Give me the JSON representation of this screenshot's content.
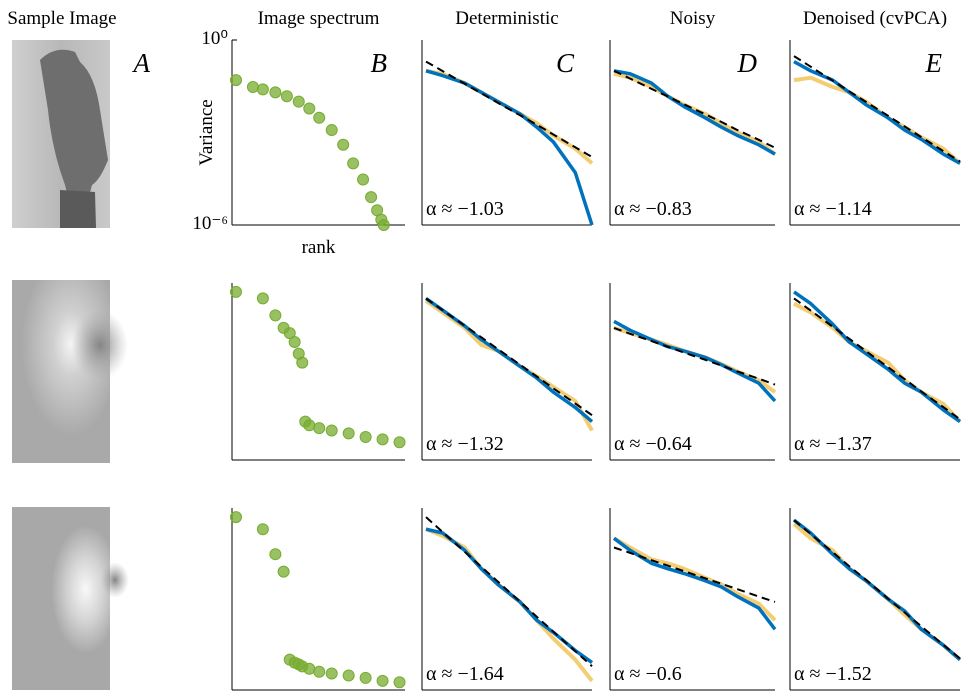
{
  "image_column": {
    "title": "Sample Image",
    "panel_label": "A"
  },
  "chart_data": [
    {
      "type": "scatter",
      "title": "Image spectrum",
      "panel_label": "B",
      "y_label": "Variance",
      "x_label": "rank",
      "log_x": true,
      "log_y": true,
      "color": "#77ac30",
      "xlim": [
        1,
        1000
      ],
      "ylim": [
        1e-06,
        1
      ],
      "yticks": [
        {
          "value": 1,
          "label": "10⁰"
        },
        {
          "value": 1e-06,
          "label": "10⁻⁶"
        }
      ],
      "x": [
        1,
        2,
        3,
        5,
        8,
        13,
        20,
        30,
        50,
        80,
        120,
        180,
        250,
        320,
        380,
        420
      ],
      "values": [
        0.05,
        0.03,
        0.025,
        0.02,
        0.015,
        0.01,
        0.006,
        0.003,
        0.0012,
        0.0004,
        0.0001,
        3e-05,
        8e-06,
        3e-06,
        1.5e-06,
        1e-06
      ]
    },
    {
      "type": "line",
      "title": "Deterministic",
      "panel_label": "C",
      "annotation": "α ≈ −1.03",
      "log_x": true,
      "log_y": true,
      "xlim": [
        1,
        1000
      ],
      "ylim": [
        1e-06,
        1
      ],
      "x": [
        1,
        2,
        5,
        10,
        20,
        50,
        100,
        200,
        500,
        1000
      ],
      "series": [
        {
          "color": "#f2c45a",
          "values": [
            0.1,
            0.08,
            0.04,
            0.02,
            0.01,
            0.004,
            0.002,
            0.0008,
            0.0003,
            0.0001
          ]
        },
        {
          "color": "#0072bd",
          "values": [
            0.1,
            0.07,
            0.04,
            0.02,
            0.01,
            0.004,
            0.0015,
            0.0005,
            5e-05,
            1e-06
          ]
        },
        {
          "color": "#000000",
          "dashed": true,
          "values": [
            0.2,
            0.098,
            0.038,
            0.0187,
            0.0091,
            0.0036,
            0.0018,
            0.00086,
            0.00033,
            0.00016
          ]
        }
      ]
    },
    {
      "type": "line",
      "title": "Noisy",
      "panel_label": "D",
      "annotation": "α ≈ −0.83",
      "log_x": true,
      "log_y": true,
      "xlim": [
        1,
        1000
      ],
      "ylim": [
        1e-06,
        1
      ],
      "x": [
        1,
        2,
        5,
        10,
        20,
        50,
        100,
        200,
        500,
        1000
      ],
      "series": [
        {
          "color": "#f2c45a",
          "values": [
            0.08,
            0.06,
            0.03,
            0.015,
            0.008,
            0.004,
            0.002,
            0.001,
            0.0005,
            0.0002
          ]
        },
        {
          "color": "#0072bd",
          "values": [
            0.1,
            0.08,
            0.04,
            0.015,
            0.007,
            0.003,
            0.0015,
            0.0008,
            0.0004,
            0.0002
          ]
        },
        {
          "color": "#000000",
          "dashed": true,
          "values": [
            0.1,
            0.056,
            0.026,
            0.0148,
            0.0083,
            0.0039,
            0.0022,
            0.0012,
            0.00058,
            0.00032
          ]
        }
      ]
    },
    {
      "type": "line",
      "title": "Denoised (cvPCA)",
      "panel_label": "E",
      "annotation": "α ≈ −1.14",
      "log_x": true,
      "log_y": true,
      "xlim": [
        1,
        1000
      ],
      "ylim": [
        1e-06,
        1
      ],
      "x": [
        1,
        2,
        5,
        10,
        20,
        50,
        100,
        200,
        500,
        1000
      ],
      "series": [
        {
          "color": "#f2c45a",
          "values": [
            0.05,
            0.06,
            0.03,
            0.02,
            0.01,
            0.003,
            0.0015,
            0.0007,
            0.0003,
            0.0001
          ]
        },
        {
          "color": "#0072bd",
          "values": [
            0.2,
            0.1,
            0.05,
            0.02,
            0.008,
            0.003,
            0.0012,
            0.0006,
            0.0002,
            0.0001
          ]
        },
        {
          "color": "#000000",
          "dashed": true,
          "values": [
            0.3,
            0.136,
            0.048,
            0.0217,
            0.0098,
            0.0035,
            0.00157,
            0.00071,
            0.00025,
            0.000115
          ]
        }
      ]
    },
    {
      "type": "scatter",
      "log_x": true,
      "log_y": true,
      "color": "#77ac30",
      "xlim": [
        1,
        1000
      ],
      "ylim": [
        1e-06,
        1
      ],
      "x": [
        1,
        3,
        5,
        7,
        9,
        11,
        13,
        15,
        17,
        20,
        30,
        50,
        100,
        200,
        400,
        800
      ],
      "values": [
        0.5,
        0.3,
        0.08,
        0.03,
        0.02,
        0.01,
        0.004,
        0.002,
        2e-05,
        1.5e-05,
        1.2e-05,
        1e-05,
        8e-06,
        6e-06,
        5e-06,
        4e-06
      ]
    },
    {
      "type": "line",
      "annotation": "α ≈ −1.32",
      "log_x": true,
      "log_y": true,
      "xlim": [
        1,
        1000
      ],
      "ylim": [
        1e-06,
        1
      ],
      "x": [
        1,
        2,
        5,
        10,
        20,
        50,
        100,
        200,
        500,
        1000
      ],
      "series": [
        {
          "color": "#f2c45a",
          "values": [
            0.25,
            0.1,
            0.03,
            0.008,
            0.005,
            0.0015,
            0.0007,
            0.0003,
            0.0001,
            1e-05
          ]
        },
        {
          "color": "#0072bd",
          "values": [
            0.3,
            0.12,
            0.035,
            0.012,
            0.005,
            0.0015,
            0.0006,
            0.0002,
            6e-05,
            2e-05
          ]
        },
        {
          "color": "#000000",
          "dashed": true,
          "values": [
            0.3,
            0.12,
            0.036,
            0.0144,
            0.0057,
            0.0017,
            0.00068,
            0.00027,
            8.2e-05,
            3.3e-05
          ]
        }
      ]
    },
    {
      "type": "line",
      "annotation": "α ≈ −0.64",
      "log_x": true,
      "log_y": true,
      "xlim": [
        1,
        1000
      ],
      "ylim": [
        1e-06,
        1
      ],
      "x": [
        1,
        2,
        5,
        10,
        20,
        50,
        100,
        200,
        500,
        1000
      ],
      "series": [
        {
          "color": "#f2c45a",
          "values": [
            0.03,
            0.02,
            0.012,
            0.008,
            0.005,
            0.003,
            0.0018,
            0.001,
            0.0005,
            0.0002
          ]
        },
        {
          "color": "#0072bd",
          "values": [
            0.05,
            0.025,
            0.012,
            0.007,
            0.005,
            0.003,
            0.0017,
            0.0009,
            0.0004,
            0.0001
          ]
        },
        {
          "color": "#000000",
          "dashed": true,
          "values": [
            0.03,
            0.019,
            0.0107,
            0.0069,
            0.0044,
            0.0025,
            0.0016,
            0.001,
            0.00057,
            0.00036
          ]
        }
      ]
    },
    {
      "type": "line",
      "annotation": "α ≈ −1.37",
      "log_x": true,
      "log_y": true,
      "xlim": [
        1,
        1000
      ],
      "ylim": [
        1e-06,
        1
      ],
      "x": [
        1,
        2,
        5,
        10,
        20,
        50,
        100,
        200,
        500,
        1000
      ],
      "series": [
        {
          "color": "#f2c45a",
          "values": [
            0.2,
            0.1,
            0.03,
            0.01,
            0.005,
            0.002,
            0.0005,
            0.0002,
            8e-05,
            2e-05
          ]
        },
        {
          "color": "#0072bd",
          "values": [
            0.5,
            0.2,
            0.04,
            0.01,
            0.004,
            0.0012,
            0.0004,
            0.0002,
            5e-05,
            2e-05
          ]
        },
        {
          "color": "#000000",
          "dashed": true,
          "values": [
            0.3,
            0.116,
            0.033,
            0.0128,
            0.0049,
            0.0014,
            0.00055,
            0.00021,
            6.2e-05,
            2.4e-05
          ]
        }
      ]
    },
    {
      "type": "scatter",
      "log_x": true,
      "log_y": true,
      "color": "#77ac30",
      "xlim": [
        1,
        1000
      ],
      "ylim": [
        1e-06,
        1
      ],
      "x": [
        1,
        3,
        5,
        7,
        9,
        11,
        13,
        15,
        20,
        30,
        50,
        100,
        200,
        400,
        800
      ],
      "values": [
        0.5,
        0.2,
        0.03,
        0.008,
        1e-05,
        8e-06,
        7e-06,
        6e-06,
        5e-06,
        4e-06,
        3.5e-06,
        3e-06,
        2.5e-06,
        2e-06,
        1.8e-06
      ]
    },
    {
      "type": "line",
      "annotation": "α ≈ −1.64",
      "log_x": true,
      "log_y": true,
      "xlim": [
        1,
        1000
      ],
      "ylim": [
        1e-06,
        1
      ],
      "x": [
        1,
        2,
        5,
        10,
        20,
        50,
        100,
        200,
        500,
        1000
      ],
      "series": [
        {
          "color": "#f2c45a",
          "values": [
            0.2,
            0.12,
            0.05,
            0.01,
            0.003,
            0.0008,
            0.0002,
            5e-05,
            1e-05,
            2e-06
          ]
        },
        {
          "color": "#0072bd",
          "values": [
            0.2,
            0.15,
            0.04,
            0.01,
            0.003,
            0.0008,
            0.0002,
            8e-05,
            2e-05,
            8e-06
          ]
        },
        {
          "color": "#000000",
          "dashed": true,
          "values": [
            0.5,
            0.16,
            0.036,
            0.0115,
            0.0037,
            0.00082,
            0.00026,
            8.4e-05,
            1.9e-05,
            6.1e-06
          ]
        }
      ]
    },
    {
      "type": "line",
      "annotation": "α ≈ −0.6",
      "log_x": true,
      "log_y": true,
      "xlim": [
        1,
        1000
      ],
      "ylim": [
        1e-06,
        1
      ],
      "x": [
        1,
        2,
        5,
        10,
        20,
        50,
        100,
        200,
        500,
        1000
      ],
      "series": [
        {
          "color": "#f2c45a",
          "values": [
            0.1,
            0.05,
            0.02,
            0.015,
            0.01,
            0.005,
            0.003,
            0.0015,
            0.0007,
            0.0002
          ]
        },
        {
          "color": "#0072bd",
          "values": [
            0.1,
            0.04,
            0.015,
            0.01,
            0.007,
            0.004,
            0.0025,
            0.0012,
            0.0005,
            0.0001
          ]
        },
        {
          "color": "#000000",
          "dashed": true,
          "values": [
            0.05,
            0.033,
            0.019,
            0.0126,
            0.0083,
            0.0048,
            0.0032,
            0.0021,
            0.0012,
            0.0008
          ]
        }
      ]
    },
    {
      "type": "line",
      "annotation": "α ≈ −1.52",
      "log_x": true,
      "log_y": true,
      "xlim": [
        1,
        1000
      ],
      "ylim": [
        1e-06,
        1
      ],
      "x": [
        1,
        2,
        5,
        10,
        20,
        50,
        100,
        200,
        500,
        1000
      ],
      "series": [
        {
          "color": "#f2c45a",
          "values": [
            0.3,
            0.1,
            0.04,
            0.01,
            0.004,
            0.001,
            0.0003,
            0.0001,
            3e-05,
            1e-05
          ]
        },
        {
          "color": "#0072bd",
          "values": [
            0.4,
            0.15,
            0.03,
            0.01,
            0.004,
            0.001,
            0.0004,
            0.0001,
            3e-05,
            1e-05
          ]
        },
        {
          "color": "#000000",
          "dashed": true,
          "values": [
            0.4,
            0.139,
            0.035,
            0.012,
            0.0043,
            0.00103,
            0.00036,
            0.000126,
            3.1e-05,
            1.1e-05
          ]
        }
      ]
    }
  ]
}
